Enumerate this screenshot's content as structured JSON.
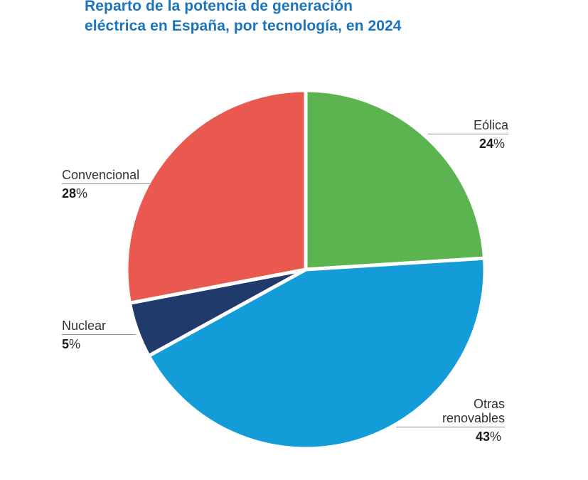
{
  "header": {
    "title_line1": "Reparto de la potencia de generación",
    "title_line2": "eléctrica en España, por tecnología, en 2024"
  },
  "chart_data": {
    "type": "pie",
    "title": "Reparto de la potencia de generación eléctrica en España, por tecnología, en 2024",
    "unit": "%",
    "start_angle_deg": 0,
    "direction": "clockwise",
    "stroke_color": "#FFFFFF",
    "slices": [
      {
        "label": "Eólica",
        "value": 24,
        "color": "#5BB450"
      },
      {
        "label": "Otras renovables",
        "value": 43,
        "color": "#149CD8"
      },
      {
        "label": "Nuclear",
        "value": 5,
        "color": "#203A6B"
      },
      {
        "label": "Convencional",
        "value": 28,
        "color": "#E9594F"
      }
    ]
  },
  "colors": {
    "background": "#FFFFFF",
    "title_text": "#1B74BC",
    "label_text": "#333333",
    "value_text": "#1A1A1A",
    "leader_line": "#929292"
  }
}
